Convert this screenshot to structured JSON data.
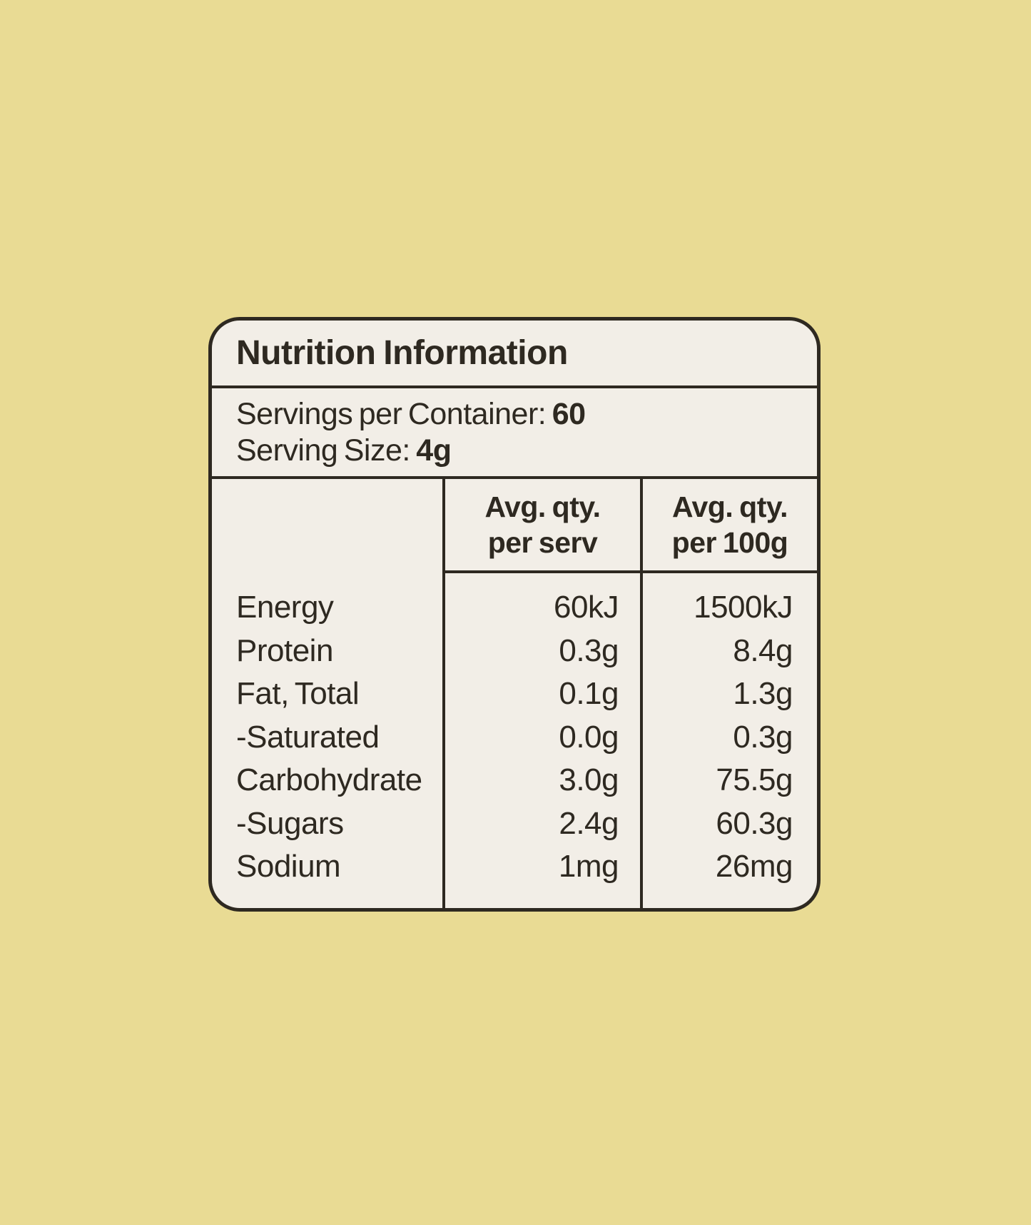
{
  "colors": {
    "background": "#e9db94",
    "card": "#f2eee7",
    "ink": "#2e2921"
  },
  "label": {
    "title": "Nutrition Information",
    "servings_per_container": {
      "label": "Servings per Container:",
      "value": "60"
    },
    "serving_size": {
      "label": "Serving Size:",
      "value": "4g"
    },
    "columns": {
      "per_serv": "Avg. qty.\nper serv",
      "per_100g": "Avg. qty.\nper 100g"
    },
    "rows": [
      {
        "name": "Energy",
        "per_serv": "60kJ",
        "per_100g": "1500kJ"
      },
      {
        "name": "Protein",
        "per_serv": "0.3g",
        "per_100g": "8.4g"
      },
      {
        "name": "Fat, Total",
        "per_serv": "0.1g",
        "per_100g": "1.3g"
      },
      {
        "name": "-Saturated",
        "per_serv": "0.0g",
        "per_100g": "0.3g"
      },
      {
        "name": "Carbohydrate",
        "per_serv": "3.0g",
        "per_100g": "75.5g"
      },
      {
        "name": "-Sugars",
        "per_serv": "2.4g",
        "per_100g": "60.3g"
      },
      {
        "name": "Sodium",
        "per_serv": "1mg",
        "per_100g": "26mg"
      }
    ]
  }
}
